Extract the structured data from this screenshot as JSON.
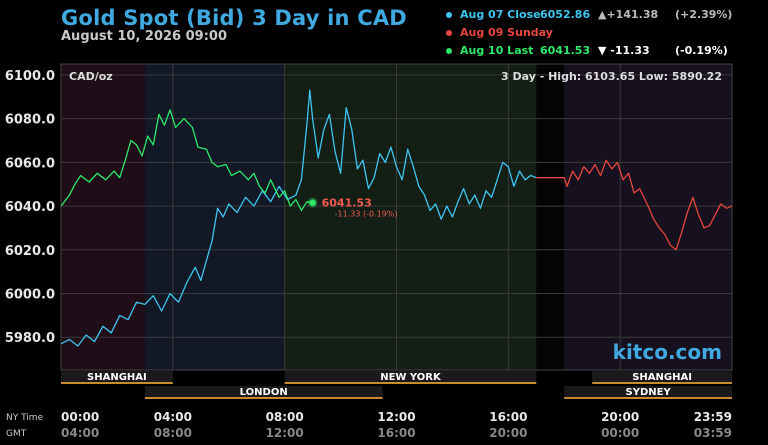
{
  "header": {
    "title": "Gold Spot (Bid) 3 Day in CAD",
    "date": "August 10, 2026 09:00"
  },
  "legend": [
    {
      "label": "Aug 07 Close",
      "value": "6052.86",
      "change": "▲+141.38",
      "pct": "(+2.39%)",
      "color": "#3fc5f0"
    },
    {
      "label": "Aug 09 Sunday",
      "value": "",
      "change": "",
      "pct": "",
      "color": "#e8453c"
    },
    {
      "label": "Aug 10 Last",
      "value": "6041.53",
      "change": "▼  -11.33",
      "pct": "(-0.19%)",
      "color": "#2ee86a"
    }
  ],
  "chart_data": {
    "type": "line",
    "unit_label": "CAD/oz",
    "range_label": "3 Day - High: 6103.65  Low: 5890.22",
    "ylim": [
      5965,
      6105
    ],
    "y_ticks": [
      "6100.0",
      "6080.0",
      "6060.0",
      "6040.0",
      "6020.0",
      "6000.0",
      "5980.0"
    ],
    "x_ticks_ny": [
      "00:00",
      "04:00",
      "08:00",
      "12:00",
      "16:00",
      "20:00",
      "23:59"
    ],
    "x_ticks_gmt": [
      "04:00",
      "08:00",
      "12:00",
      "16:00",
      "20:00",
      "00:00",
      "03:59"
    ],
    "axis_labels": {
      "ny": "NY Time",
      "gmt": "GMT"
    },
    "watermark": "kitco.com",
    "last_marker": {
      "x": 9.0,
      "value": "6041.53",
      "change": "-11.33 (-0.19%)"
    },
    "sessions": [
      {
        "name": "SHANGHAI",
        "start": 0,
        "end": 4
      },
      {
        "name": "LONDON",
        "start": 3,
        "end": 11.5
      },
      {
        "name": "NEW YORK",
        "start": 8,
        "end": 17
      },
      {
        "name": "SHANGHAI",
        "start": 19,
        "end": 24
      },
      {
        "name": "SYDNEY",
        "start": 18,
        "end": 24
      }
    ],
    "series": [
      {
        "name": "Aug 07 Close",
        "color": "#3fc5f0",
        "points": [
          [
            0,
            5977
          ],
          [
            0.3,
            5979
          ],
          [
            0.6,
            5976
          ],
          [
            0.9,
            5981
          ],
          [
            1.2,
            5978
          ],
          [
            1.5,
            5985
          ],
          [
            1.8,
            5982
          ],
          [
            2.1,
            5990
          ],
          [
            2.4,
            5988
          ],
          [
            2.7,
            5996
          ],
          [
            3.0,
            5995
          ],
          [
            3.3,
            5999
          ],
          [
            3.6,
            5992
          ],
          [
            3.9,
            6000
          ],
          [
            4.2,
            5996
          ],
          [
            4.5,
            6005
          ],
          [
            4.8,
            6012
          ],
          [
            5.0,
            6006
          ],
          [
            5.2,
            6015
          ],
          [
            5.4,
            6024
          ],
          [
            5.6,
            6039
          ],
          [
            5.8,
            6035
          ],
          [
            6.0,
            6041
          ],
          [
            6.3,
            6037
          ],
          [
            6.6,
            6044
          ],
          [
            6.9,
            6040
          ],
          [
            7.2,
            6047
          ],
          [
            7.5,
            6042
          ],
          [
            7.8,
            6049
          ],
          [
            8.1,
            6043
          ],
          [
            8.4,
            6045
          ],
          [
            8.6,
            6052
          ],
          [
            8.8,
            6078
          ],
          [
            8.9,
            6093
          ],
          [
            9.0,
            6080
          ],
          [
            9.2,
            6062
          ],
          [
            9.4,
            6075
          ],
          [
            9.6,
            6082
          ],
          [
            9.8,
            6065
          ],
          [
            10.0,
            6055
          ],
          [
            10.2,
            6085
          ],
          [
            10.4,
            6075
          ],
          [
            10.6,
            6057
          ],
          [
            10.8,
            6061
          ],
          [
            11.0,
            6048
          ],
          [
            11.2,
            6053
          ],
          [
            11.4,
            6064
          ],
          [
            11.6,
            6060
          ],
          [
            11.8,
            6067
          ],
          [
            12.0,
            6058
          ],
          [
            12.2,
            6052
          ],
          [
            12.4,
            6066
          ],
          [
            12.6,
            6058
          ],
          [
            12.8,
            6049
          ],
          [
            13.0,
            6045
          ],
          [
            13.2,
            6038
          ],
          [
            13.4,
            6041
          ],
          [
            13.6,
            6034
          ],
          [
            13.8,
            6040
          ],
          [
            14.0,
            6035
          ],
          [
            14.2,
            6042
          ],
          [
            14.4,
            6048
          ],
          [
            14.6,
            6041
          ],
          [
            14.8,
            6045
          ],
          [
            15.0,
            6039
          ],
          [
            15.2,
            6047
          ],
          [
            15.4,
            6044
          ],
          [
            15.6,
            6052
          ],
          [
            15.8,
            6060
          ],
          [
            16.0,
            6058
          ],
          [
            16.2,
            6049
          ],
          [
            16.4,
            6056
          ],
          [
            16.6,
            6052
          ],
          [
            16.8,
            6054
          ],
          [
            17.0,
            6053
          ]
        ]
      },
      {
        "name": "Aug 09 Sunday",
        "color": "#e8453c",
        "points": [
          [
            17.0,
            6053
          ],
          [
            18.0,
            6053
          ],
          [
            18.1,
            6049
          ],
          [
            18.3,
            6056
          ],
          [
            18.5,
            6052
          ],
          [
            18.7,
            6058
          ],
          [
            18.9,
            6055
          ],
          [
            19.1,
            6059
          ],
          [
            19.3,
            6054
          ],
          [
            19.5,
            6061
          ],
          [
            19.7,
            6057
          ],
          [
            19.9,
            6060
          ],
          [
            20.1,
            6052
          ],
          [
            20.3,
            6055
          ],
          [
            20.5,
            6046
          ],
          [
            20.7,
            6048
          ],
          [
            21.0,
            6040
          ],
          [
            21.2,
            6034
          ],
          [
            21.4,
            6030
          ],
          [
            21.6,
            6027
          ],
          [
            21.8,
            6022
          ],
          [
            22.0,
            6020
          ],
          [
            22.2,
            6028
          ],
          [
            22.4,
            6037
          ],
          [
            22.6,
            6044
          ],
          [
            22.8,
            6036
          ],
          [
            23.0,
            6030
          ],
          [
            23.2,
            6031
          ],
          [
            23.4,
            6036
          ],
          [
            23.6,
            6041
          ],
          [
            23.8,
            6039
          ],
          [
            24.0,
            6040
          ]
        ]
      },
      {
        "name": "Aug 10 Last",
        "color": "#2ee86a",
        "points": [
          [
            0,
            6040
          ],
          [
            0.3,
            6045
          ],
          [
            0.5,
            6050
          ],
          [
            0.7,
            6054
          ],
          [
            1.0,
            6051
          ],
          [
            1.3,
            6055
          ],
          [
            1.6,
            6052
          ],
          [
            1.9,
            6056
          ],
          [
            2.1,
            6053
          ],
          [
            2.3,
            6061
          ],
          [
            2.5,
            6070
          ],
          [
            2.7,
            6068
          ],
          [
            2.9,
            6063
          ],
          [
            3.1,
            6072
          ],
          [
            3.3,
            6068
          ],
          [
            3.5,
            6082
          ],
          [
            3.7,
            6077
          ],
          [
            3.9,
            6084
          ],
          [
            4.1,
            6076
          ],
          [
            4.4,
            6080
          ],
          [
            4.7,
            6076
          ],
          [
            4.9,
            6067
          ],
          [
            5.2,
            6066
          ],
          [
            5.4,
            6060
          ],
          [
            5.6,
            6058
          ],
          [
            5.9,
            6059
          ],
          [
            6.1,
            6054
          ],
          [
            6.4,
            6056
          ],
          [
            6.7,
            6052
          ],
          [
            6.9,
            6055
          ],
          [
            7.1,
            6049
          ],
          [
            7.3,
            6046
          ],
          [
            7.5,
            6052
          ],
          [
            7.8,
            6044
          ],
          [
            8.0,
            6047
          ],
          [
            8.2,
            6040
          ],
          [
            8.4,
            6043
          ],
          [
            8.6,
            6038
          ],
          [
            8.8,
            6042
          ],
          [
            9.0,
            6041.53
          ]
        ]
      }
    ]
  }
}
